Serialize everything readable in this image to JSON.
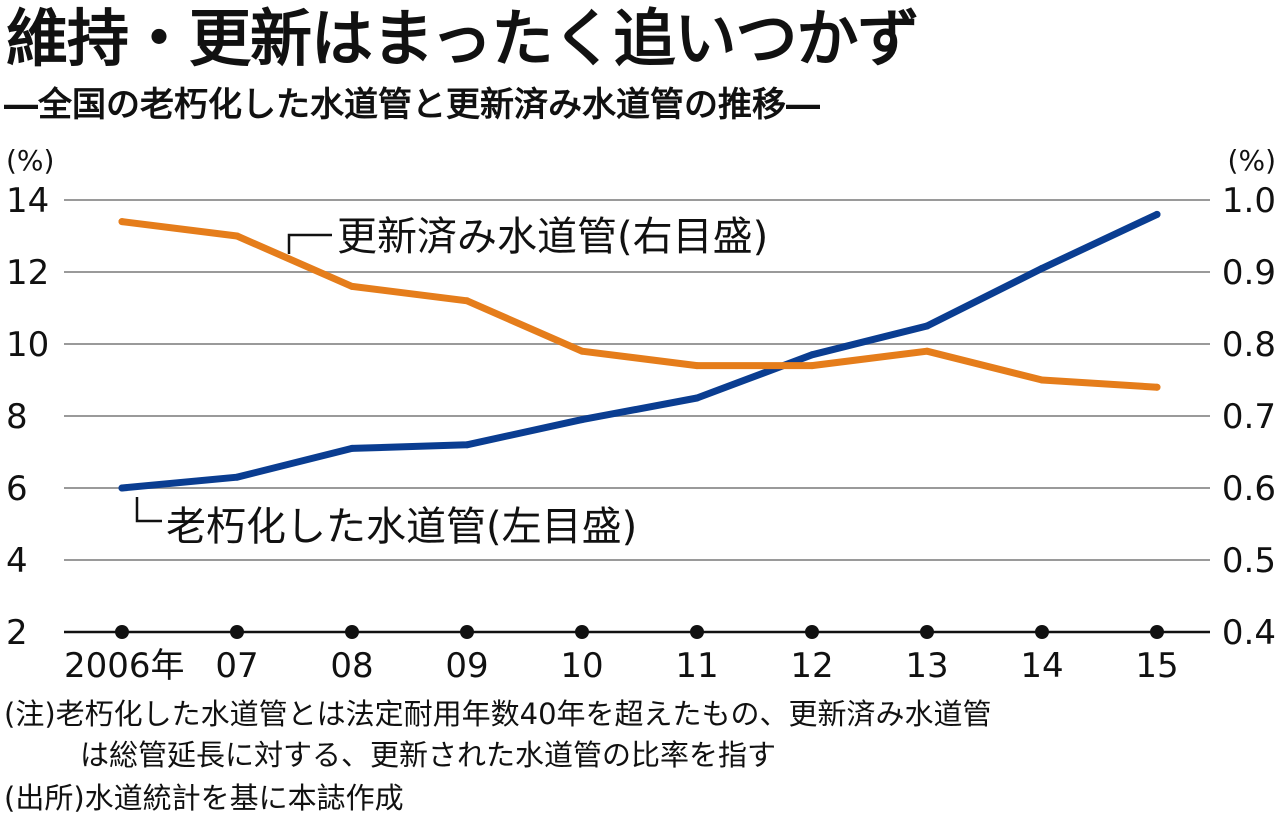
{
  "title": "維持・更新はまったく追いつかず",
  "subtitle": "―全国の老朽化した水道管と更新済み水道管の推移―",
  "chart_data": {
    "type": "line",
    "categories": [
      "2006年",
      "07",
      "08",
      "09",
      "10",
      "11",
      "12",
      "13",
      "14",
      "15"
    ],
    "y_left": {
      "unit": "(%)",
      "ticks": [
        "2",
        "4",
        "6",
        "8",
        "10",
        "12",
        "14"
      ],
      "range": [
        2,
        14
      ]
    },
    "y_right": {
      "unit": "(%)",
      "ticks": [
        "0.4",
        "0.5",
        "0.6",
        "0.7",
        "0.8",
        "0.9",
        "1.0"
      ],
      "range": [
        0.4,
        1.0
      ]
    },
    "grid": true,
    "series": [
      {
        "name": "老朽化した水道管(左目盛)",
        "axis": "left",
        "color": "#0a3d91",
        "values": [
          6.0,
          6.3,
          7.1,
          7.2,
          7.9,
          8.5,
          9.7,
          10.5,
          12.1,
          13.6
        ]
      },
      {
        "name": "更新済み水道管(右目盛)",
        "axis": "right",
        "color": "#e57d1b",
        "values": [
          0.97,
          0.95,
          0.88,
          0.86,
          0.79,
          0.77,
          0.77,
          0.79,
          0.75,
          0.74
        ]
      }
    ]
  },
  "notes": {
    "note_line1": "(注)老朽化した水道管とは法定耐用年数40年を超えたもの、更新済み水道管",
    "note_line2": "は総管延長に対する、更新された水道管の比率を指す",
    "source": "(出所)水道統計を基に本誌作成"
  }
}
